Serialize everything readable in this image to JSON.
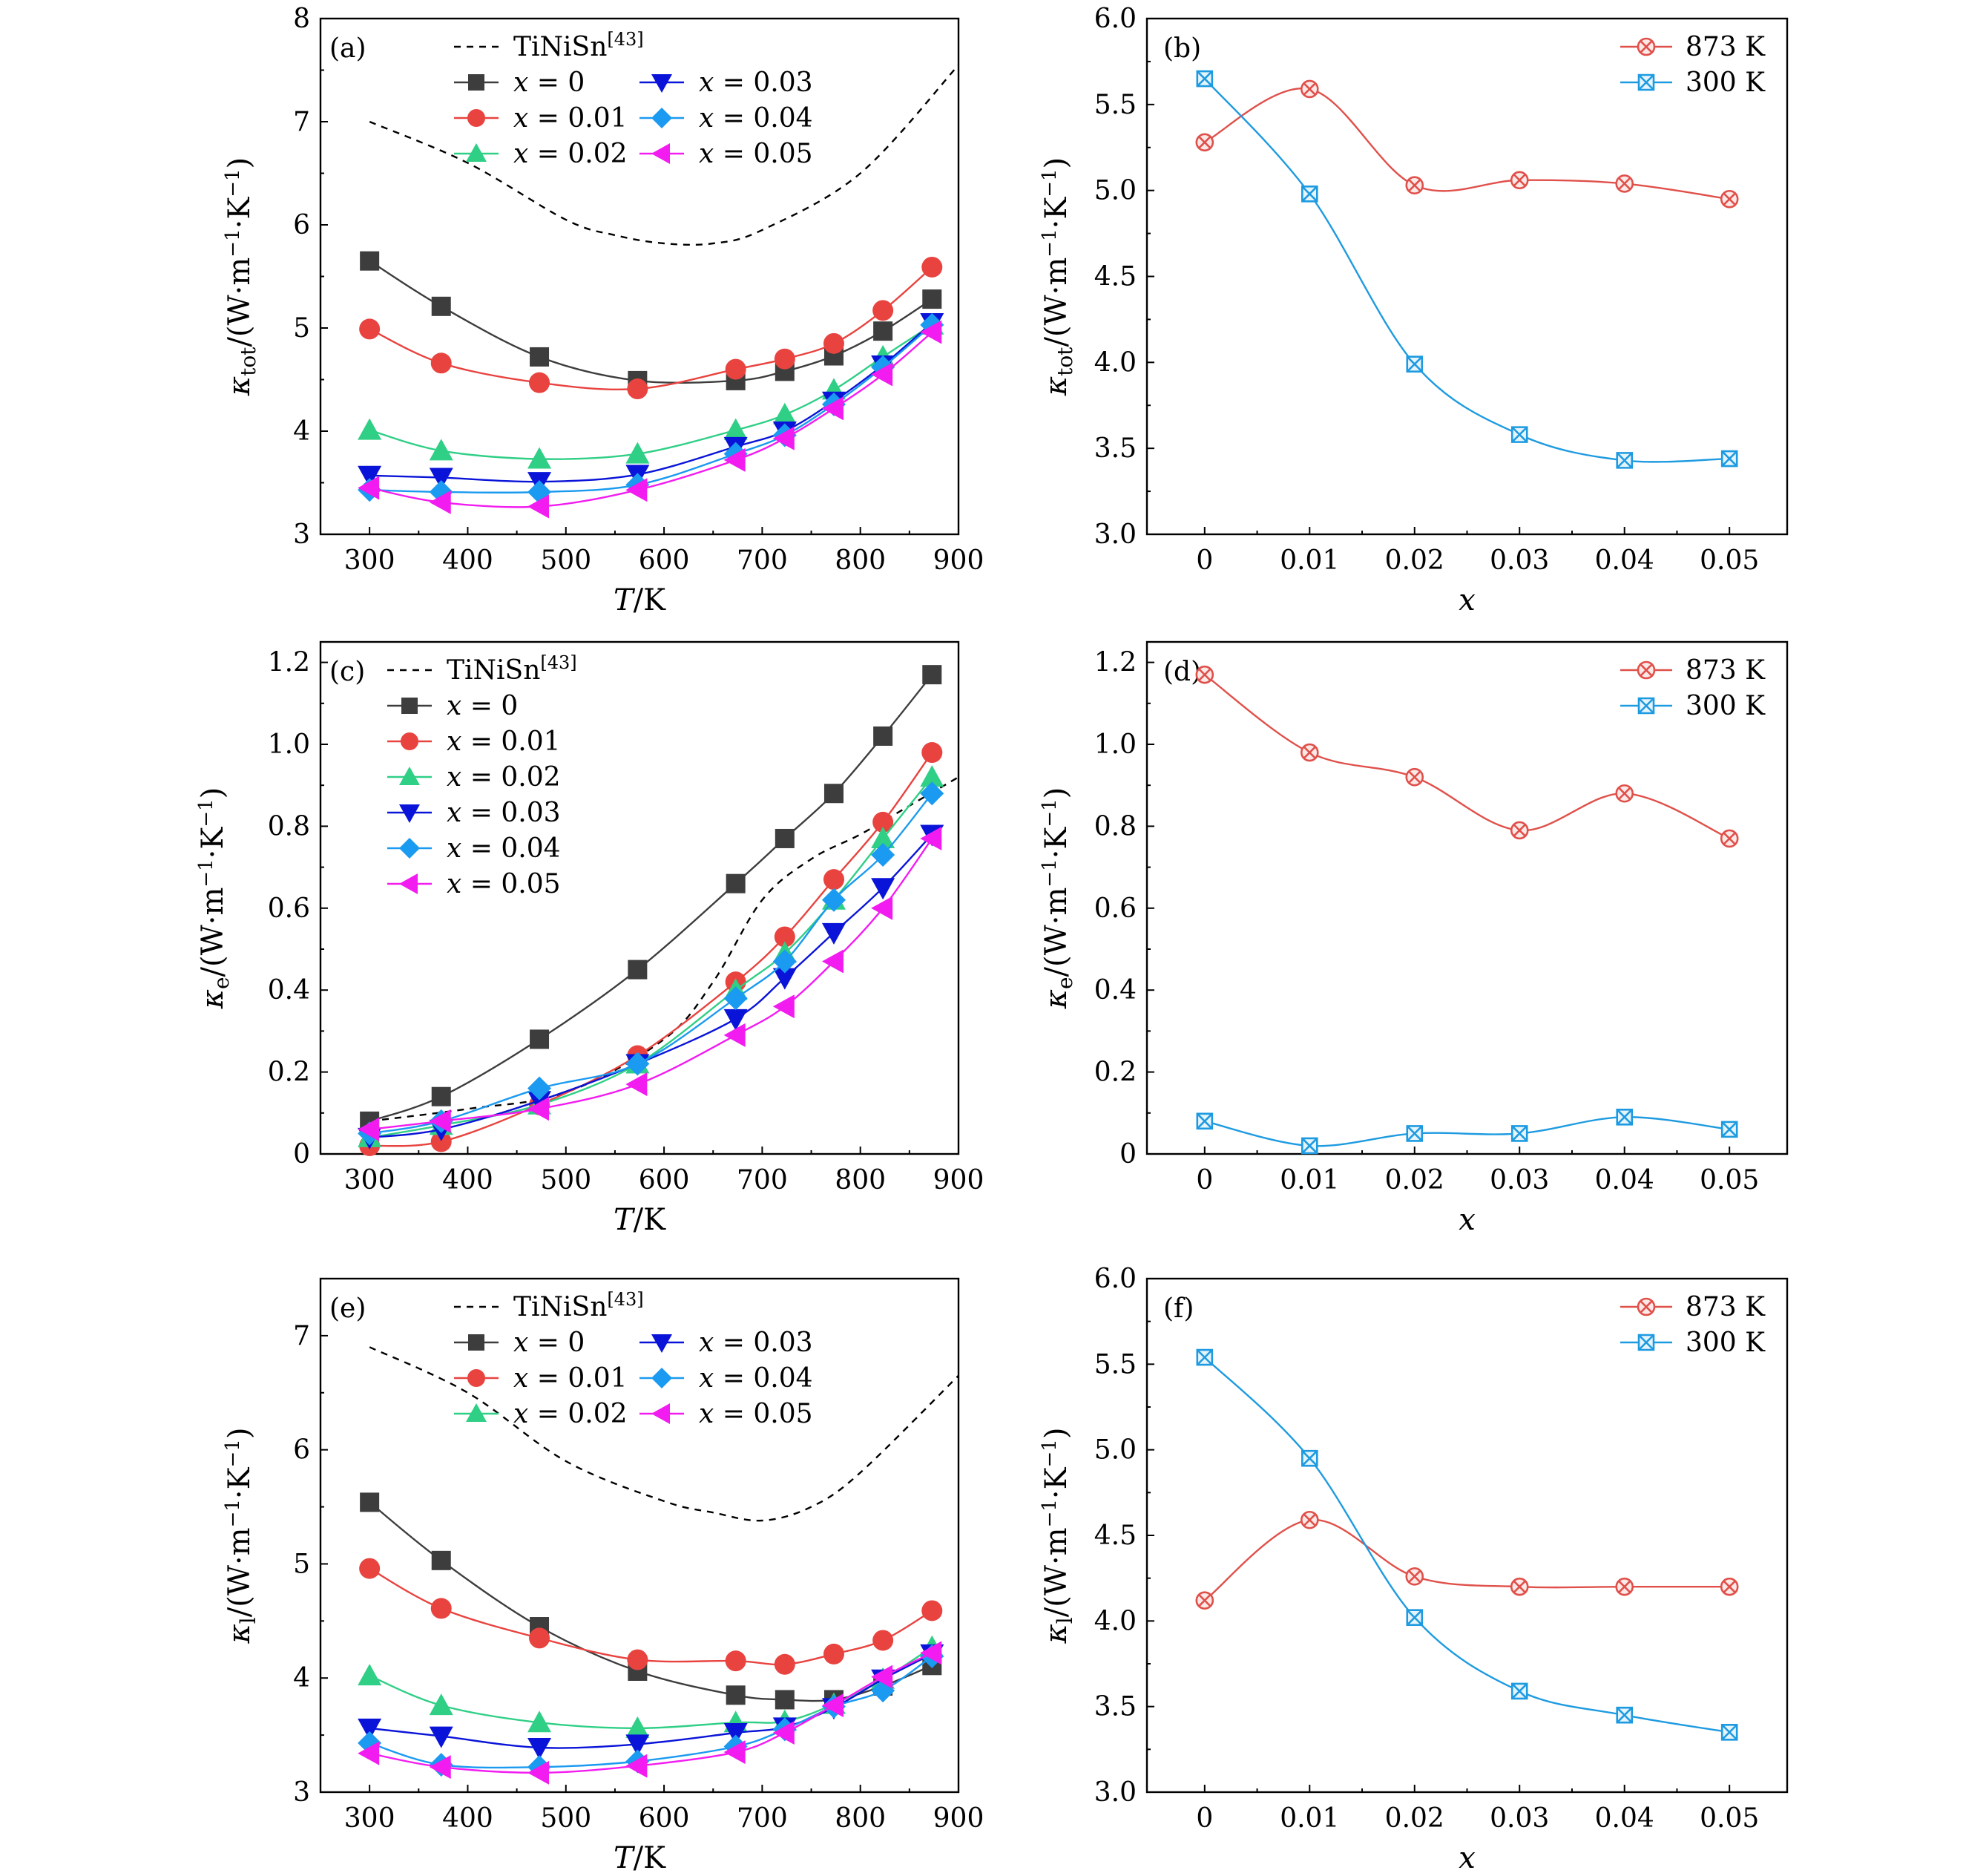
{
  "figure": {
    "panel_tags": [
      "(a)",
      "(b)",
      "(c)",
      "(d)",
      "(e)",
      "(f)"
    ]
  },
  "colors": {
    "x0": "#3d3d3d",
    "x001": "#e8433f",
    "x002": "#2fcf86",
    "x003": "#0a14d8",
    "x004": "#1a9af0",
    "x005": "#f21cf0",
    "ref": "#000000",
    "k873": "#e0504a",
    "k300": "#1e9be0"
  },
  "chart_data": [
    {
      "type": "line",
      "panel": "(a)",
      "xlabel": "T/K",
      "ylabel": "κtot/(W·m−1·K−1)",
      "xlim": [
        250,
        900
      ],
      "ylim": [
        3,
        8
      ],
      "xticks": [
        "300",
        "400",
        "500",
        "600",
        "700",
        "800",
        "900"
      ],
      "yticks": [
        "3",
        "4",
        "5",
        "6",
        "7",
        "8"
      ],
      "legend_columns": 2,
      "reference": {
        "name": "TiNiSn[43]",
        "x": [
          300,
          400,
          500,
          550,
          600,
          650,
          700,
          800,
          900
        ],
        "y": [
          7.0,
          6.6,
          6.05,
          5.9,
          5.82,
          5.82,
          5.95,
          6.5,
          7.55
        ]
      },
      "series": [
        {
          "name": "x = 0",
          "marker": "square",
          "x": [
            300,
            373,
            473,
            573,
            673,
            723,
            773,
            823,
            873
          ],
          "y": [
            5.65,
            5.21,
            4.72,
            4.49,
            4.49,
            4.58,
            4.73,
            4.97,
            5.28
          ]
        },
        {
          "name": "x = 0.01",
          "marker": "circle",
          "x": [
            300,
            373,
            473,
            573,
            673,
            723,
            773,
            823,
            873
          ],
          "y": [
            4.99,
            4.66,
            4.47,
            4.41,
            4.6,
            4.7,
            4.85,
            5.17,
            5.59
          ]
        },
        {
          "name": "x = 0.02",
          "marker": "triangle-up",
          "x": [
            300,
            373,
            473,
            573,
            673,
            723,
            773,
            823,
            873
          ],
          "y": [
            4.01,
            3.81,
            3.73,
            3.78,
            4.01,
            4.16,
            4.4,
            4.72,
            5.03
          ]
        },
        {
          "name": "x = 0.03",
          "marker": "triangle-down",
          "x": [
            300,
            373,
            473,
            573,
            673,
            723,
            773,
            823,
            873
          ],
          "y": [
            3.57,
            3.55,
            3.51,
            3.58,
            3.85,
            4.0,
            4.29,
            4.64,
            5.05
          ]
        },
        {
          "name": "x = 0.04",
          "marker": "diamond",
          "x": [
            300,
            373,
            473,
            573,
            673,
            723,
            773,
            823,
            873
          ],
          "y": [
            3.43,
            3.41,
            3.41,
            3.48,
            3.78,
            3.96,
            4.26,
            4.62,
            5.03
          ]
        },
        {
          "name": "x = 0.05",
          "marker": "triangle-left",
          "x": [
            300,
            373,
            473,
            573,
            673,
            723,
            773,
            823,
            873
          ],
          "y": [
            3.45,
            3.31,
            3.27,
            3.43,
            3.72,
            3.93,
            4.22,
            4.55,
            4.96
          ]
        }
      ]
    },
    {
      "type": "line",
      "panel": "(b)",
      "xlabel": "x",
      "ylabel": "κtot/(W·m−1·K−1)",
      "xlim": [
        -0.0055,
        0.0555
      ],
      "ylim": [
        3.0,
        6.0
      ],
      "xticks": [
        "0",
        "0.01",
        "0.02",
        "0.03",
        "0.04",
        "0.05"
      ],
      "yticks": [
        "3.0",
        "3.5",
        "4.0",
        "4.5",
        "5.0",
        "5.5",
        "6.0"
      ],
      "series": [
        {
          "name": "873 K",
          "marker": "circle-x",
          "x": [
            0,
            0.01,
            0.02,
            0.03,
            0.04,
            0.05
          ],
          "y": [
            5.28,
            5.59,
            5.03,
            5.06,
            5.04,
            4.95
          ]
        },
        {
          "name": "300 K",
          "marker": "square-x",
          "x": [
            0,
            0.01,
            0.02,
            0.03,
            0.04,
            0.05
          ],
          "y": [
            5.65,
            4.98,
            3.99,
            3.58,
            3.43,
            3.44
          ]
        }
      ]
    },
    {
      "type": "line",
      "panel": "(c)",
      "xlabel": "T/K",
      "ylabel": "κe/(W·m−1·K−1)",
      "xlim": [
        250,
        900
      ],
      "ylim": [
        0,
        1.25
      ],
      "xticks": [
        "300",
        "400",
        "500",
        "600",
        "700",
        "800",
        "900"
      ],
      "yticks": [
        "0",
        "0.2",
        "0.4",
        "0.6",
        "0.8",
        "1.0",
        "1.2"
      ],
      "legend_columns": 1,
      "reference": {
        "name": "TiNiSn[43]",
        "x": [
          300,
          400,
          500,
          600,
          650,
          700,
          750,
          800,
          850,
          900
        ],
        "y": [
          0.08,
          0.11,
          0.15,
          0.28,
          0.42,
          0.62,
          0.72,
          0.78,
          0.85,
          0.92
        ]
      },
      "series": [
        {
          "name": "x = 0",
          "marker": "square",
          "x": [
            300,
            373,
            473,
            573,
            673,
            723,
            773,
            823,
            873
          ],
          "y": [
            0.08,
            0.14,
            0.28,
            0.45,
            0.66,
            0.77,
            0.88,
            1.02,
            1.17
          ]
        },
        {
          "name": "x = 0.01",
          "marker": "circle",
          "x": [
            300,
            373,
            473,
            573,
            673,
            723,
            773,
            823,
            873
          ],
          "y": [
            0.02,
            0.03,
            0.12,
            0.24,
            0.42,
            0.53,
            0.67,
            0.81,
            0.98
          ]
        },
        {
          "name": "x = 0.02",
          "marker": "triangle-up",
          "x": [
            300,
            373,
            473,
            573,
            673,
            723,
            773,
            823,
            873
          ],
          "y": [
            0.04,
            0.07,
            0.12,
            0.22,
            0.4,
            0.49,
            0.62,
            0.77,
            0.92
          ]
        },
        {
          "name": "x = 0.03",
          "marker": "triangle-down",
          "x": [
            300,
            373,
            473,
            573,
            673,
            723,
            773,
            823,
            873
          ],
          "y": [
            0.04,
            0.06,
            0.13,
            0.22,
            0.33,
            0.43,
            0.54,
            0.65,
            0.78
          ]
        },
        {
          "name": "x = 0.04",
          "marker": "diamond",
          "x": [
            300,
            373,
            473,
            573,
            673,
            723,
            773,
            823,
            873
          ],
          "y": [
            0.05,
            0.08,
            0.16,
            0.22,
            0.38,
            0.47,
            0.62,
            0.73,
            0.88
          ]
        },
        {
          "name": "x = 0.05",
          "marker": "triangle-left",
          "x": [
            300,
            373,
            473,
            573,
            673,
            723,
            773,
            823,
            873
          ],
          "y": [
            0.06,
            0.08,
            0.11,
            0.17,
            0.29,
            0.36,
            0.47,
            0.6,
            0.77
          ]
        }
      ]
    },
    {
      "type": "line",
      "panel": "(d)",
      "xlabel": "x",
      "ylabel": "κe/(W·m−1·K−1)",
      "xlim": [
        -0.0055,
        0.0555
      ],
      "ylim": [
        0,
        1.25
      ],
      "xticks": [
        "0",
        "0.01",
        "0.02",
        "0.03",
        "0.04",
        "0.05"
      ],
      "yticks": [
        "0",
        "0.2",
        "0.4",
        "0.6",
        "0.8",
        "1.0",
        "1.2"
      ],
      "series": [
        {
          "name": "873 K",
          "marker": "circle-x",
          "x": [
            0,
            0.01,
            0.02,
            0.03,
            0.04,
            0.05
          ],
          "y": [
            1.17,
            0.98,
            0.92,
            0.79,
            0.88,
            0.77
          ]
        },
        {
          "name": "300 K",
          "marker": "square-x",
          "x": [
            0,
            0.01,
            0.02,
            0.03,
            0.04,
            0.05
          ],
          "y": [
            0.08,
            0.02,
            0.05,
            0.05,
            0.09,
            0.06
          ]
        }
      ]
    },
    {
      "type": "line",
      "panel": "(e)",
      "xlabel": "T/K",
      "ylabel": "κl/(W·m−1·K−1)",
      "xlim": [
        250,
        900
      ],
      "ylim": [
        3,
        7.5
      ],
      "xticks": [
        "300",
        "400",
        "500",
        "600",
        "700",
        "800",
        "900"
      ],
      "yticks": [
        "3",
        "4",
        "5",
        "6",
        "7"
      ],
      "legend_columns": 2,
      "reference": {
        "name": "TiNiSn[43]",
        "x": [
          300,
          400,
          500,
          600,
          650,
          700,
          750,
          800,
          900
        ],
        "y": [
          6.9,
          6.5,
          5.9,
          5.55,
          5.45,
          5.38,
          5.5,
          5.8,
          6.65
        ]
      },
      "series": [
        {
          "name": "x = 0",
          "marker": "square",
          "x": [
            300,
            373,
            473,
            573,
            673,
            723,
            773,
            823,
            873
          ],
          "y": [
            5.54,
            5.03,
            4.45,
            4.06,
            3.85,
            3.81,
            3.81,
            3.93,
            4.11
          ]
        },
        {
          "name": "x = 0.01",
          "marker": "circle",
          "x": [
            300,
            373,
            473,
            573,
            673,
            723,
            773,
            823,
            873
          ],
          "y": [
            4.96,
            4.61,
            4.35,
            4.16,
            4.15,
            4.12,
            4.21,
            4.33,
            4.59
          ]
        },
        {
          "name": "x = 0.02",
          "marker": "triangle-up",
          "x": [
            300,
            373,
            473,
            573,
            673,
            723,
            773,
            823,
            873
          ],
          "y": [
            4.02,
            3.76,
            3.61,
            3.56,
            3.61,
            3.62,
            3.77,
            3.99,
            4.27
          ]
        },
        {
          "name": "x = 0.03",
          "marker": "triangle-down",
          "x": [
            300,
            373,
            473,
            573,
            673,
            723,
            773,
            823,
            873
          ],
          "y": [
            3.56,
            3.49,
            3.39,
            3.42,
            3.52,
            3.57,
            3.74,
            3.99,
            4.21
          ]
        },
        {
          "name": "x = 0.04",
          "marker": "diamond",
          "x": [
            300,
            373,
            473,
            573,
            673,
            723,
            773,
            823,
            873
          ],
          "y": [
            3.43,
            3.24,
            3.22,
            3.27,
            3.4,
            3.55,
            3.75,
            3.89,
            4.19
          ]
        },
        {
          "name": "x = 0.05",
          "marker": "triangle-left",
          "x": [
            300,
            373,
            473,
            573,
            673,
            723,
            773,
            823,
            873
          ],
          "y": [
            3.34,
            3.22,
            3.17,
            3.23,
            3.35,
            3.52,
            3.76,
            4.01,
            4.22
          ]
        }
      ]
    },
    {
      "type": "line",
      "panel": "(f)",
      "xlabel": "x",
      "ylabel": "κl/(W·m−1·K−1)",
      "xlim": [
        -0.0055,
        0.0555
      ],
      "ylim": [
        3.0,
        6.0
      ],
      "xticks": [
        "0",
        "0.01",
        "0.02",
        "0.03",
        "0.04",
        "0.05"
      ],
      "yticks": [
        "3.0",
        "3.5",
        "4.0",
        "4.5",
        "5.0",
        "5.5",
        "6.0"
      ],
      "series": [
        {
          "name": "873 K",
          "marker": "circle-x",
          "x": [
            0,
            0.01,
            0.02,
            0.03,
            0.04,
            0.05
          ],
          "y": [
            4.12,
            4.59,
            4.26,
            4.2,
            4.2,
            4.2
          ]
        },
        {
          "name": "300 K",
          "marker": "square-x",
          "x": [
            0,
            0.01,
            0.02,
            0.03,
            0.04,
            0.05
          ],
          "y": [
            5.54,
            4.95,
            4.02,
            3.59,
            3.45,
            3.35
          ]
        }
      ]
    }
  ]
}
